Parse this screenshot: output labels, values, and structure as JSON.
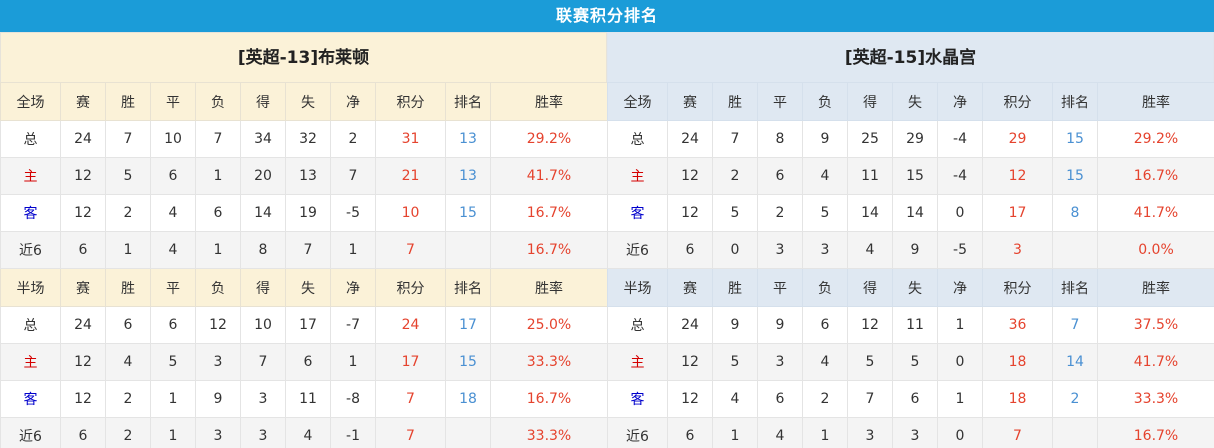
{
  "title": "联赛积分排名",
  "colors": {
    "title_bar": "#1b9cd8",
    "left_header_bg": "#fbf2d8",
    "right_header_bg": "#dfe8f2",
    "stripe": "#f4f4f4",
    "accent_red": "#e5432e",
    "accent_blue": "#4a90d2",
    "home_label_red": "#d40000",
    "away_label_blue": "#0000cc"
  },
  "columns": [
    "赛",
    "胜",
    "平",
    "负",
    "得",
    "失",
    "净",
    "积分",
    "排名",
    "胜率"
  ],
  "teams": [
    {
      "name": "[英超-13]布莱顿",
      "sections": [
        {
          "label": "全场",
          "rows": [
            {
              "label": "总",
              "type": "total",
              "cells": [
                "24",
                "7",
                "10",
                "7",
                "34",
                "32",
                "2",
                "31",
                "13",
                "29.2%"
              ]
            },
            {
              "label": "主",
              "type": "home",
              "cells": [
                "12",
                "5",
                "6",
                "1",
                "20",
                "13",
                "7",
                "21",
                "13",
                "41.7%"
              ]
            },
            {
              "label": "客",
              "type": "away",
              "cells": [
                "12",
                "2",
                "4",
                "6",
                "14",
                "19",
                "-5",
                "10",
                "15",
                "16.7%"
              ]
            },
            {
              "label": "近6",
              "type": "last6",
              "cells": [
                "6",
                "1",
                "4",
                "1",
                "8",
                "7",
                "1",
                "7",
                "",
                "16.7%"
              ]
            }
          ]
        },
        {
          "label": "半场",
          "rows": [
            {
              "label": "总",
              "type": "total",
              "cells": [
                "24",
                "6",
                "6",
                "12",
                "10",
                "17",
                "-7",
                "24",
                "17",
                "25.0%"
              ]
            },
            {
              "label": "主",
              "type": "home",
              "cells": [
                "12",
                "4",
                "5",
                "3",
                "7",
                "6",
                "1",
                "17",
                "15",
                "33.3%"
              ]
            },
            {
              "label": "客",
              "type": "away",
              "cells": [
                "12",
                "2",
                "1",
                "9",
                "3",
                "11",
                "-8",
                "7",
                "18",
                "16.7%"
              ]
            },
            {
              "label": "近6",
              "type": "last6",
              "cells": [
                "6",
                "2",
                "1",
                "3",
                "3",
                "4",
                "-1",
                "7",
                "",
                "33.3%"
              ]
            }
          ]
        }
      ]
    },
    {
      "name": "[英超-15]水晶宫",
      "sections": [
        {
          "label": "全场",
          "rows": [
            {
              "label": "总",
              "type": "total",
              "cells": [
                "24",
                "7",
                "8",
                "9",
                "25",
                "29",
                "-4",
                "29",
                "15",
                "29.2%"
              ]
            },
            {
              "label": "主",
              "type": "home",
              "cells": [
                "12",
                "2",
                "6",
                "4",
                "11",
                "15",
                "-4",
                "12",
                "15",
                "16.7%"
              ]
            },
            {
              "label": "客",
              "type": "away",
              "cells": [
                "12",
                "5",
                "2",
                "5",
                "14",
                "14",
                "0",
                "17",
                "8",
                "41.7%"
              ]
            },
            {
              "label": "近6",
              "type": "last6",
              "cells": [
                "6",
                "0",
                "3",
                "3",
                "4",
                "9",
                "-5",
                "3",
                "",
                "0.0%"
              ]
            }
          ]
        },
        {
          "label": "半场",
          "rows": [
            {
              "label": "总",
              "type": "total",
              "cells": [
                "24",
                "9",
                "9",
                "6",
                "12",
                "11",
                "1",
                "36",
                "7",
                "37.5%"
              ]
            },
            {
              "label": "主",
              "type": "home",
              "cells": [
                "12",
                "5",
                "3",
                "4",
                "5",
                "5",
                "0",
                "18",
                "14",
                "41.7%"
              ]
            },
            {
              "label": "客",
              "type": "away",
              "cells": [
                "12",
                "4",
                "6",
                "2",
                "7",
                "6",
                "1",
                "18",
                "2",
                "33.3%"
              ]
            },
            {
              "label": "近6",
              "type": "last6",
              "cells": [
                "6",
                "1",
                "4",
                "1",
                "3",
                "3",
                "0",
                "7",
                "",
                "16.7%"
              ]
            }
          ]
        }
      ]
    }
  ]
}
